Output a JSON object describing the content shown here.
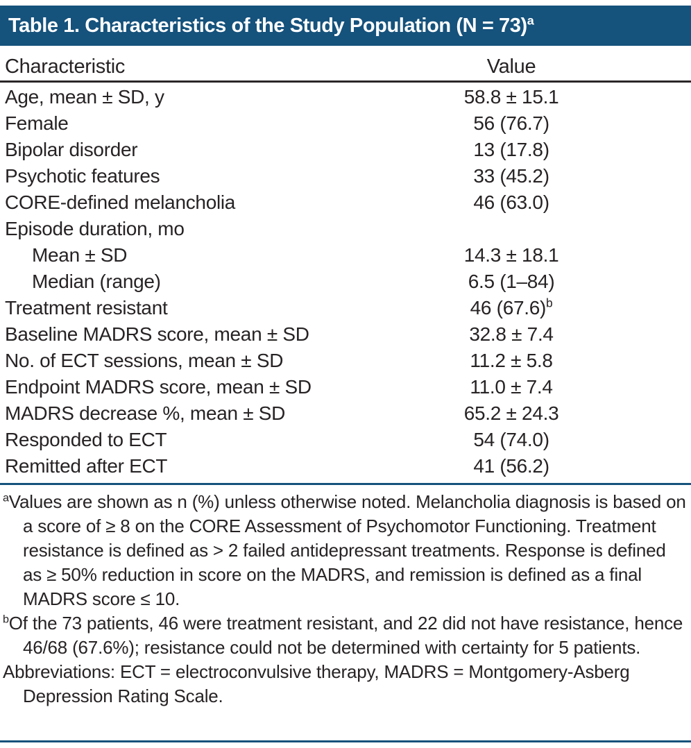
{
  "title": {
    "text": "Table 1. Characteristics of the Study Population (N = 73)",
    "superscript": "a"
  },
  "columns": {
    "characteristic": "Characteristic",
    "value": "Value"
  },
  "table_rows": [
    {
      "label": "Age, mean ± SD, y",
      "value": "58.8 ± 15.1",
      "sup": "",
      "indent": false
    },
    {
      "label": "Female",
      "value": "56 (76.7)",
      "sup": "",
      "indent": false
    },
    {
      "label": "Bipolar disorder",
      "value": "13 (17.8)",
      "sup": "",
      "indent": false
    },
    {
      "label": "Psychotic features",
      "value": "33 (45.2)",
      "sup": "",
      "indent": false
    },
    {
      "label": "CORE-defined melancholia",
      "value": "46 (63.0)",
      "sup": "",
      "indent": false
    },
    {
      "label": "Episode duration, mo",
      "value": "",
      "sup": "",
      "indent": false
    },
    {
      "label": "Mean ± SD",
      "value": "14.3 ± 18.1",
      "sup": "",
      "indent": true
    },
    {
      "label": "Median (range)",
      "value": "6.5 (1–84)",
      "sup": "",
      "indent": true
    },
    {
      "label": "Treatment resistant",
      "value": "46 (67.6)",
      "sup": "b",
      "indent": false
    },
    {
      "label": "Baseline MADRS score, mean ± SD",
      "value": "32.8 ± 7.4",
      "sup": "",
      "indent": false
    },
    {
      "label": "No. of ECT sessions, mean ± SD",
      "value": "11.2 ± 5.8",
      "sup": "",
      "indent": false
    },
    {
      "label": "Endpoint MADRS score, mean ± SD",
      "value": "11.0 ± 7.4",
      "sup": "",
      "indent": false
    },
    {
      "label": "MADRS decrease %, mean ± SD",
      "value": "65.2 ± 24.3",
      "sup": "",
      "indent": false
    },
    {
      "label": "Responded to ECT",
      "value": "54 (74.0)",
      "sup": "",
      "indent": false
    },
    {
      "label": "Remitted after ECT",
      "value": "41 (56.2)",
      "sup": "",
      "indent": false
    }
  ],
  "footnotes": [
    {
      "marker": "a",
      "text": "Values are shown as n (%) unless otherwise noted. Melancholia diagnosis is based on a score of ≥ 8 on the CORE Assessment of Psychomotor Functioning. Treatment resistance is defined as > 2 failed antidepressant treatments. Response is defined as ≥ 50% reduction in score on the MADRS, and remission is defined as a final MADRS score ≤ 10."
    },
    {
      "marker": "b",
      "text": "Of the 73 patients, 46 were treatment resistant, and 22 did not have resistance, hence 46/68 (67.6%); resistance could not be determined with certainty for 5 patients."
    },
    {
      "marker": "",
      "text": "Abbreviations: ECT = electroconvulsive therapy, MADRS = Montgomery-Asberg Depression Rating Scale."
    }
  ],
  "colors": {
    "accent_blue": "#15527C",
    "text": "#272324",
    "header_rule": "#2A2627"
  }
}
